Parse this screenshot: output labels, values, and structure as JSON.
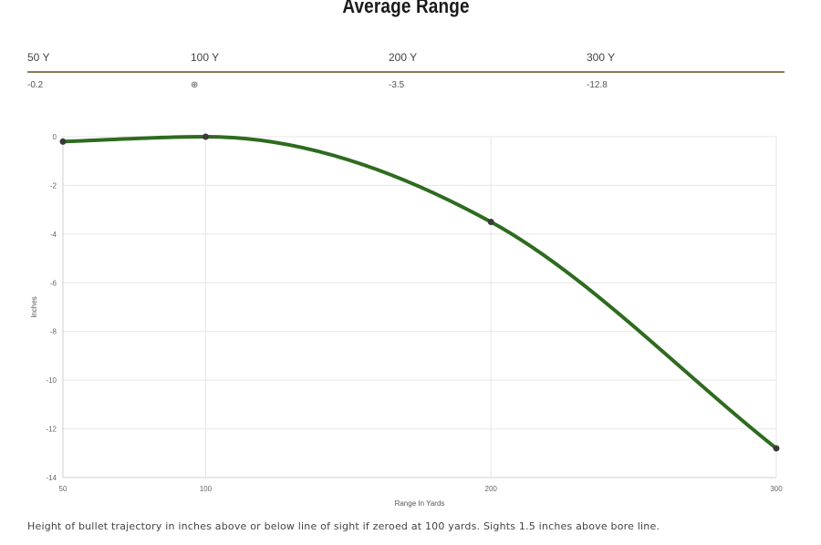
{
  "title": "Average Range",
  "table": {
    "headers": [
      "50 Y",
      "100 Y",
      "200 Y",
      "300 Y"
    ],
    "values": [
      "-0.2",
      "⊕",
      "-3.5",
      "-12.8"
    ]
  },
  "chart_data": {
    "type": "line",
    "x": [
      50,
      100,
      200,
      300
    ],
    "series": [
      {
        "values": [
          -0.2,
          0,
          -3.5,
          -12.8
        ]
      }
    ],
    "xlabel": "Range In Yards",
    "ylabel": "Inches",
    "xticks": [
      50,
      100,
      200,
      300
    ],
    "yticks": [
      0,
      -2,
      -4,
      -6,
      -8,
      -10,
      -12,
      -14
    ],
    "xlim": [
      50,
      300
    ],
    "ylim": [
      -14,
      0
    ],
    "grid": true,
    "line_color": "#2e6b1f",
    "point_color": "#3a3a3a"
  },
  "caption": "Height of bullet trajectory in inches above or below line of sight if zeroed at 100 yards. Sights 1.5 inches above bore line."
}
